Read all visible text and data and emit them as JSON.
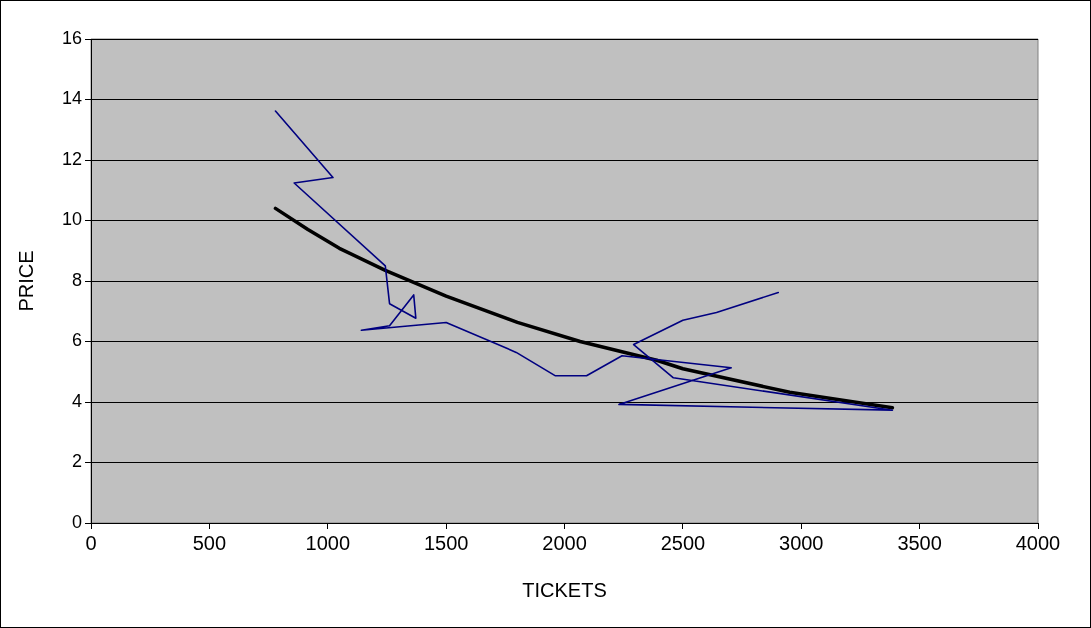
{
  "chart_data": {
    "type": "line",
    "xlabel": "TICKETS",
    "ylabel": "PRICE",
    "xlim": [
      0,
      4000
    ],
    "xticks": [
      0,
      500,
      1000,
      1500,
      2000,
      2500,
      3000,
      3500,
      4000
    ],
    "ylim": [
      0,
      16
    ],
    "yticks": [
      0,
      2,
      4,
      6,
      8,
      10,
      12,
      14,
      16
    ],
    "grid": "y",
    "legend": false,
    "marker": "none",
    "line_style": "solid",
    "series": [
      {
        "color": "#000080",
        "x": [
          779,
          1022,
          858,
          1243,
          1261,
          1372,
          1363,
          1261,
          1142,
          1500,
          1796,
          1960,
          2093,
          2243,
          2704,
          2230,
          3385,
          2460,
          2292,
          2500,
          2642,
          2903
        ],
        "values": [
          13.62,
          11.42,
          11.24,
          8.5,
          7.25,
          6.77,
          7.54,
          6.52,
          6.37,
          6.63,
          5.64,
          4.87,
          4.87,
          5.53,
          5.13,
          3.92,
          3.73,
          4.8,
          5.9,
          6.7,
          6.96,
          7.62
        ]
      },
      {
        "type": "line",
        "color": "#000000",
        "x": [
          779,
          916,
          1049,
          1243,
          1500,
          1801,
          2066,
          2389,
          2500,
          2951,
          3385
        ],
        "values": [
          10.4,
          9.7,
          9.08,
          8.35,
          7.5,
          6.63,
          6.0,
          5.38,
          5.1,
          4.32,
          3.81
        ]
      }
    ]
  }
}
